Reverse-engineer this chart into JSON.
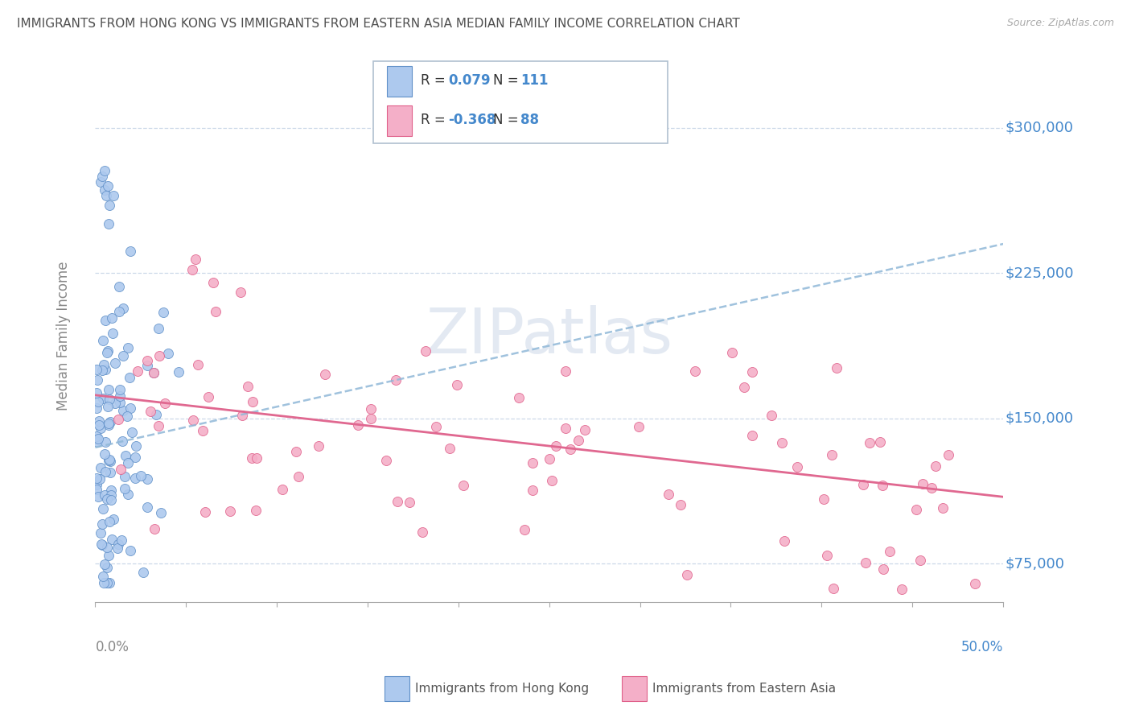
{
  "title": "IMMIGRANTS FROM HONG KONG VS IMMIGRANTS FROM EASTERN ASIA MEDIAN FAMILY INCOME CORRELATION CHART",
  "source": "Source: ZipAtlas.com",
  "ylabel": "Median Family Income",
  "yticks": [
    75000,
    150000,
    225000,
    300000
  ],
  "ytick_labels": [
    "$75,000",
    "$150,000",
    "$225,000",
    "$300,000"
  ],
  "xlim": [
    0.0,
    50.0
  ],
  "ylim": [
    55000,
    330000
  ],
  "blue_R": 0.079,
  "blue_N": 111,
  "pink_R": -0.368,
  "pink_N": 88,
  "blue_color": "#adc9ee",
  "pink_color": "#f4afc8",
  "blue_edge_color": "#6090c8",
  "pink_edge_color": "#e0608a",
  "blue_line_color": "#90b8d8",
  "pink_line_color": "#e06890",
  "legend_label_blue": "Immigrants from Hong Kong",
  "legend_label_pink": "Immigrants from Eastern Asia",
  "watermark": "ZIPatlas",
  "background_color": "#ffffff",
  "grid_color": "#ccd8e8",
  "title_color": "#505050",
  "axis_label_color": "#4488cc",
  "blue_trend_intercept": 135000,
  "blue_trend_slope": 2100,
  "pink_trend_intercept": 162000,
  "pink_trend_slope": -1050
}
